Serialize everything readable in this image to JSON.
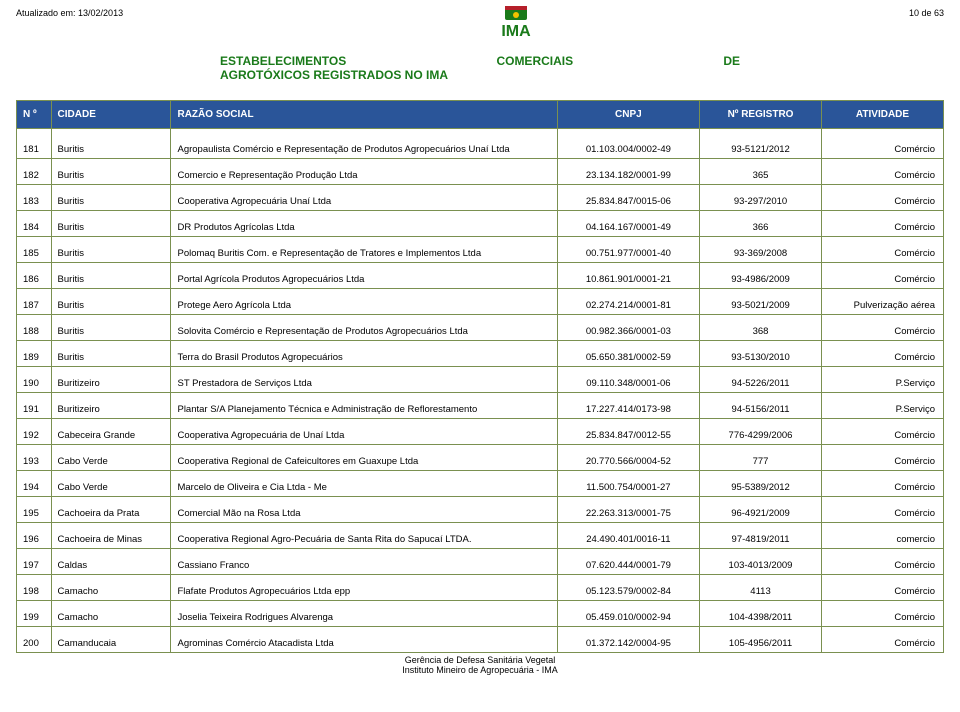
{
  "meta": {
    "updated_label": "Atualizado em: 13/02/2013",
    "page_label": "10 de 63"
  },
  "title": {
    "word1": "ESTABELECIMENTOS",
    "word2": "COMERCIAIS",
    "word3": "DE",
    "line2": "AGROTÓXICOS REGISTRADOS NO IMA"
  },
  "colors": {
    "header_bg": "#2a5599",
    "header_fg": "#ffffff",
    "border": "#7a9050",
    "title": "#1a7a1a"
  },
  "columns": {
    "num": "N º",
    "cidade": "CIDADE",
    "razao": "RAZÃO SOCIAL",
    "cnpj": "CNPJ",
    "registro": "Nº REGISTRO",
    "atividade": "ATIVIDADE"
  },
  "rows": [
    {
      "n": "181",
      "cidade": "Buritis",
      "razao": "Agropaulista Comércio e Representação de Produtos Agropecuários Unaí Ltda",
      "cnpj": "01.103.004/0002-49",
      "reg": "93-5121/2012",
      "act": "Comércio",
      "tall": true
    },
    {
      "n": "182",
      "cidade": "Buritis",
      "razao": "Comercio e Representação Produção Ltda",
      "cnpj": "23.134.182/0001-99",
      "reg": "365",
      "act": "Comércio"
    },
    {
      "n": "183",
      "cidade": "Buritis",
      "razao": "Cooperativa Agropecuária Unaí Ltda",
      "cnpj": "25.834.847/0015-06",
      "reg": "93-297/2010",
      "act": "Comércio"
    },
    {
      "n": "184",
      "cidade": "Buritis",
      "razao": "DR Produtos Agrícolas Ltda",
      "cnpj": "04.164.167/0001-49",
      "reg": "366",
      "act": "Comércio"
    },
    {
      "n": "185",
      "cidade": "Buritis",
      "razao": "Polomaq Buritis Com. e Representação de Tratores e Implementos Ltda",
      "cnpj": "00.751.977/0001-40",
      "reg": "93-369/2008",
      "act": "Comércio"
    },
    {
      "n": "186",
      "cidade": "Buritis",
      "razao": "Portal Agrícola Produtos Agropecuários Ltda",
      "cnpj": "10.861.901/0001-21",
      "reg": "93-4986/2009",
      "act": "Comércio"
    },
    {
      "n": "187",
      "cidade": "Buritis",
      "razao": "Protege Aero Agrícola Ltda",
      "cnpj": "02.274.214/0001-81",
      "reg": "93-5021/2009",
      "act": "Pulverização aérea"
    },
    {
      "n": "188",
      "cidade": "Buritis",
      "razao": "Solovita Comércio e Representação de Produtos Agropecuários Ltda",
      "cnpj": "00.982.366/0001-03",
      "reg": "368",
      "act": "Comércio"
    },
    {
      "n": "189",
      "cidade": "Buritis",
      "razao": "Terra do Brasil Produtos Agropecuários",
      "cnpj": "05.650.381/0002-59",
      "reg": "93-5130/2010",
      "act": "Comércio"
    },
    {
      "n": "190",
      "cidade": "Buritizeiro",
      "razao": "ST Prestadora de Serviços Ltda",
      "cnpj": "09.110.348/0001-06",
      "reg": "94-5226/2011",
      "act": "P.Serviço"
    },
    {
      "n": "191",
      "cidade": "Buritizeiro",
      "razao": "Plantar S/A Planejamento Técnica e Administração de Reflorestamento",
      "cnpj": "17.227.414/0173-98",
      "reg": "94-5156/2011",
      "act": "P.Serviço"
    },
    {
      "n": "192",
      "cidade": "Cabeceira Grande",
      "razao": "Cooperativa Agropecuária de Unaí Ltda",
      "cnpj": "25.834.847/0012-55",
      "reg": "776-4299/2006",
      "act": "Comércio"
    },
    {
      "n": "193",
      "cidade": "Cabo Verde",
      "razao": "Cooperativa Regional de Cafeicultores em Guaxupe Ltda",
      "cnpj": "20.770.566/0004-52",
      "reg": "777",
      "act": "Comércio"
    },
    {
      "n": "194",
      "cidade": "Cabo Verde",
      "razao": "Marcelo de Oliveira e Cia Ltda - Me",
      "cnpj": "11.500.754/0001-27",
      "reg": "95-5389/2012",
      "act": "Comércio"
    },
    {
      "n": "195",
      "cidade": "Cachoeira da Prata",
      "razao": "Comercial Mão na Rosa Ltda",
      "cnpj": "22.263.313/0001-75",
      "reg": "96-4921/2009",
      "act": "Comércio"
    },
    {
      "n": "196",
      "cidade": "Cachoeira de Minas",
      "razao": "Cooperativa Regional Agro-Pecuária de Santa Rita do Sapucaí LTDA.",
      "cnpj": "24.490.401/0016-11",
      "reg": "97-4819/2011",
      "act": "comercio"
    },
    {
      "n": "197",
      "cidade": "Caldas",
      "razao": "Cassiano Franco",
      "cnpj": "07.620.444/0001-79",
      "reg": "103-4013/2009",
      "act": "Comércio"
    },
    {
      "n": "198",
      "cidade": "Camacho",
      "razao": "Flafate Produtos Agropecuários Ltda epp",
      "cnpj": "05.123.579/0002-84",
      "reg": "4113",
      "act": "Comércio"
    },
    {
      "n": "199",
      "cidade": "Camacho",
      "razao": "Joselia Teixeira Rodrigues Alvarenga",
      "cnpj": "05.459.010/0002-94",
      "reg": "104-4398/2011",
      "act": "Comércio"
    },
    {
      "n": "200",
      "cidade": "Camanducaia",
      "razao": "Agrominas Comércio Atacadista Ltda",
      "cnpj": "01.372.142/0004-95",
      "reg": "105-4956/2011",
      "act": "Comércio"
    }
  ],
  "footer": {
    "line1": "Gerência de Defesa Sanitária Vegetal",
    "line2": "Instituto Mineiro de Agropecuária - IMA"
  }
}
